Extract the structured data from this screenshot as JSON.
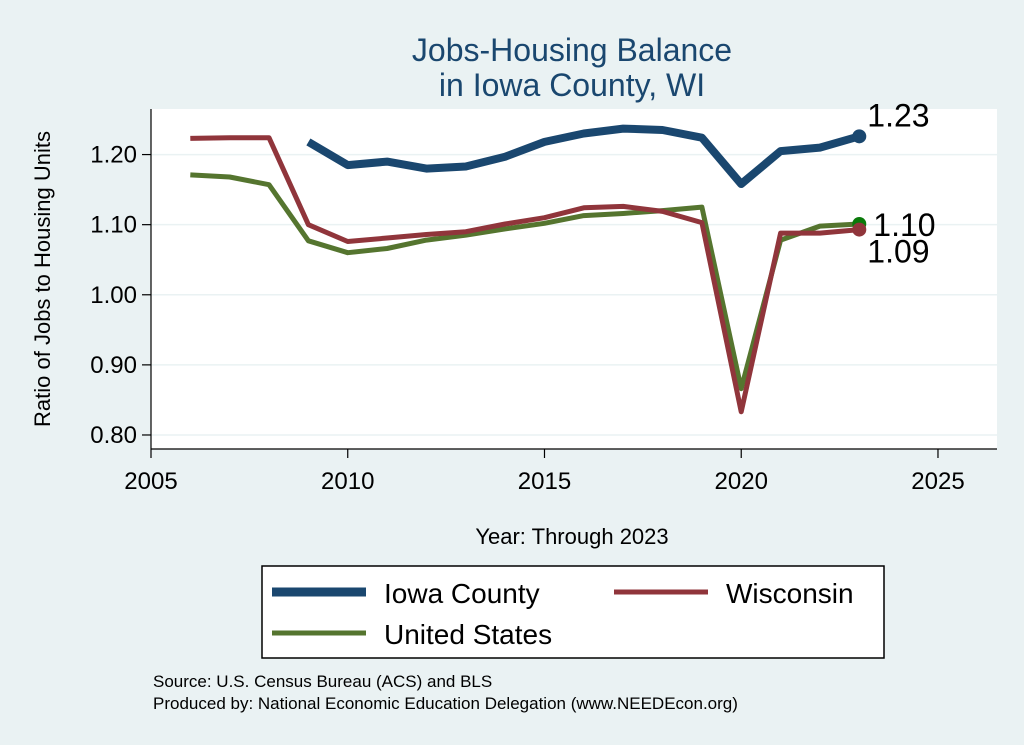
{
  "chart_data": {
    "type": "line",
    "title": [
      "Jobs-Housing Balance",
      "in Iowa County, WI"
    ],
    "xlabel": "Year: Through 2023",
    "ylabel": "Ratio of Jobs to Housing Units",
    "xlim": [
      2005,
      2026.5
    ],
    "ylim": [
      0.78,
      1.265
    ],
    "xticks": [
      2005,
      2010,
      2015,
      2020,
      2025
    ],
    "yticks": [
      0.8,
      0.9,
      1.0,
      1.1,
      1.2
    ],
    "ytick_labels": [
      "0.80",
      "0.90",
      "1.00",
      "1.10",
      "1.20"
    ],
    "grid": true,
    "series": [
      {
        "name": "Iowa County",
        "color": "#1a476f",
        "x": [
          2009,
          2010,
          2011,
          2012,
          2013,
          2014,
          2015,
          2016,
          2017,
          2018,
          2019,
          2020,
          2021,
          2022,
          2023
        ],
        "values": [
          1.218,
          1.185,
          1.19,
          1.18,
          1.183,
          1.197,
          1.218,
          1.23,
          1.237,
          1.235,
          1.224,
          1.158,
          1.205,
          1.21,
          1.226
        ],
        "end_label": "1.23"
      },
      {
        "name": "Wisconsin",
        "color": "#90353b",
        "x": [
          2006,
          2007,
          2008,
          2009,
          2010,
          2011,
          2012,
          2013,
          2014,
          2015,
          2016,
          2017,
          2018,
          2019,
          2020,
          2021,
          2022,
          2023
        ],
        "values": [
          1.223,
          1.224,
          1.224,
          1.1,
          1.076,
          1.081,
          1.086,
          1.09,
          1.101,
          1.11,
          1.124,
          1.126,
          1.119,
          1.103,
          0.833,
          1.088,
          1.088,
          1.093
        ],
        "end_label": "1.09"
      },
      {
        "name": "United States",
        "color": "#55752f",
        "x": [
          2006,
          2007,
          2008,
          2009,
          2010,
          2011,
          2012,
          2013,
          2014,
          2015,
          2016,
          2017,
          2018,
          2019,
          2020,
          2021,
          2022,
          2023
        ],
        "values": [
          1.171,
          1.168,
          1.157,
          1.077,
          1.06,
          1.066,
          1.078,
          1.085,
          1.094,
          1.102,
          1.113,
          1.116,
          1.12,
          1.125,
          0.866,
          1.078,
          1.098,
          1.101
        ],
        "end_label": "1.10"
      }
    ],
    "legend": {
      "position": "bottom",
      "items": [
        "Iowa County",
        "Wisconsin",
        "United States"
      ]
    }
  },
  "source": {
    "line1": "Source: U.S. Census Bureau (ACS) and BLS",
    "line2": "Produced by: National Economic Education Delegation (www.NEEDEcon.org)"
  }
}
